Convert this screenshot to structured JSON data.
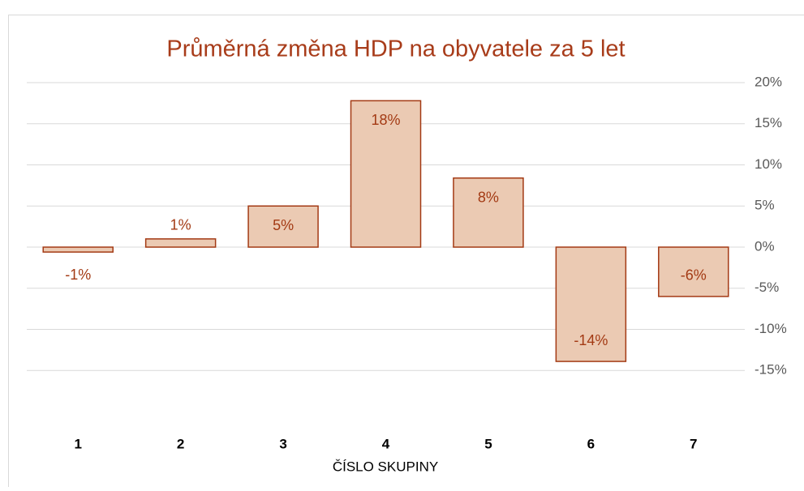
{
  "chart_data": {
    "type": "bar",
    "title": "Průměrná změna HDP na obyvatele za 5 let",
    "x_label": "ČÍSLO SKUPINY",
    "categories": [
      "1",
      "2",
      "3",
      "4",
      "5",
      "6",
      "7"
    ],
    "values": [
      -0.6,
      1.0,
      5.0,
      17.8,
      8.4,
      -13.9,
      -6.0
    ],
    "value_labels": [
      "-1%",
      "1%",
      "5%",
      "18%",
      "8%",
      "-14%",
      "-6%"
    ],
    "color": "#ebcab3",
    "edge_color": "#a33a14",
    "ylim": [
      -20,
      20
    ],
    "yticks": [
      {
        "value": 20,
        "label": "20%"
      },
      {
        "value": 15,
        "label": "15%"
      },
      {
        "value": 10,
        "label": "10%"
      },
      {
        "value": 5,
        "label": "5%"
      },
      {
        "value": 0,
        "label": "0%"
      },
      {
        "value": -5,
        "label": "-5%"
      },
      {
        "value": -10,
        "label": "-10%"
      },
      {
        "value": -15,
        "label": "-15%"
      }
    ],
    "y_axis_side": "right",
    "grid": true
  }
}
